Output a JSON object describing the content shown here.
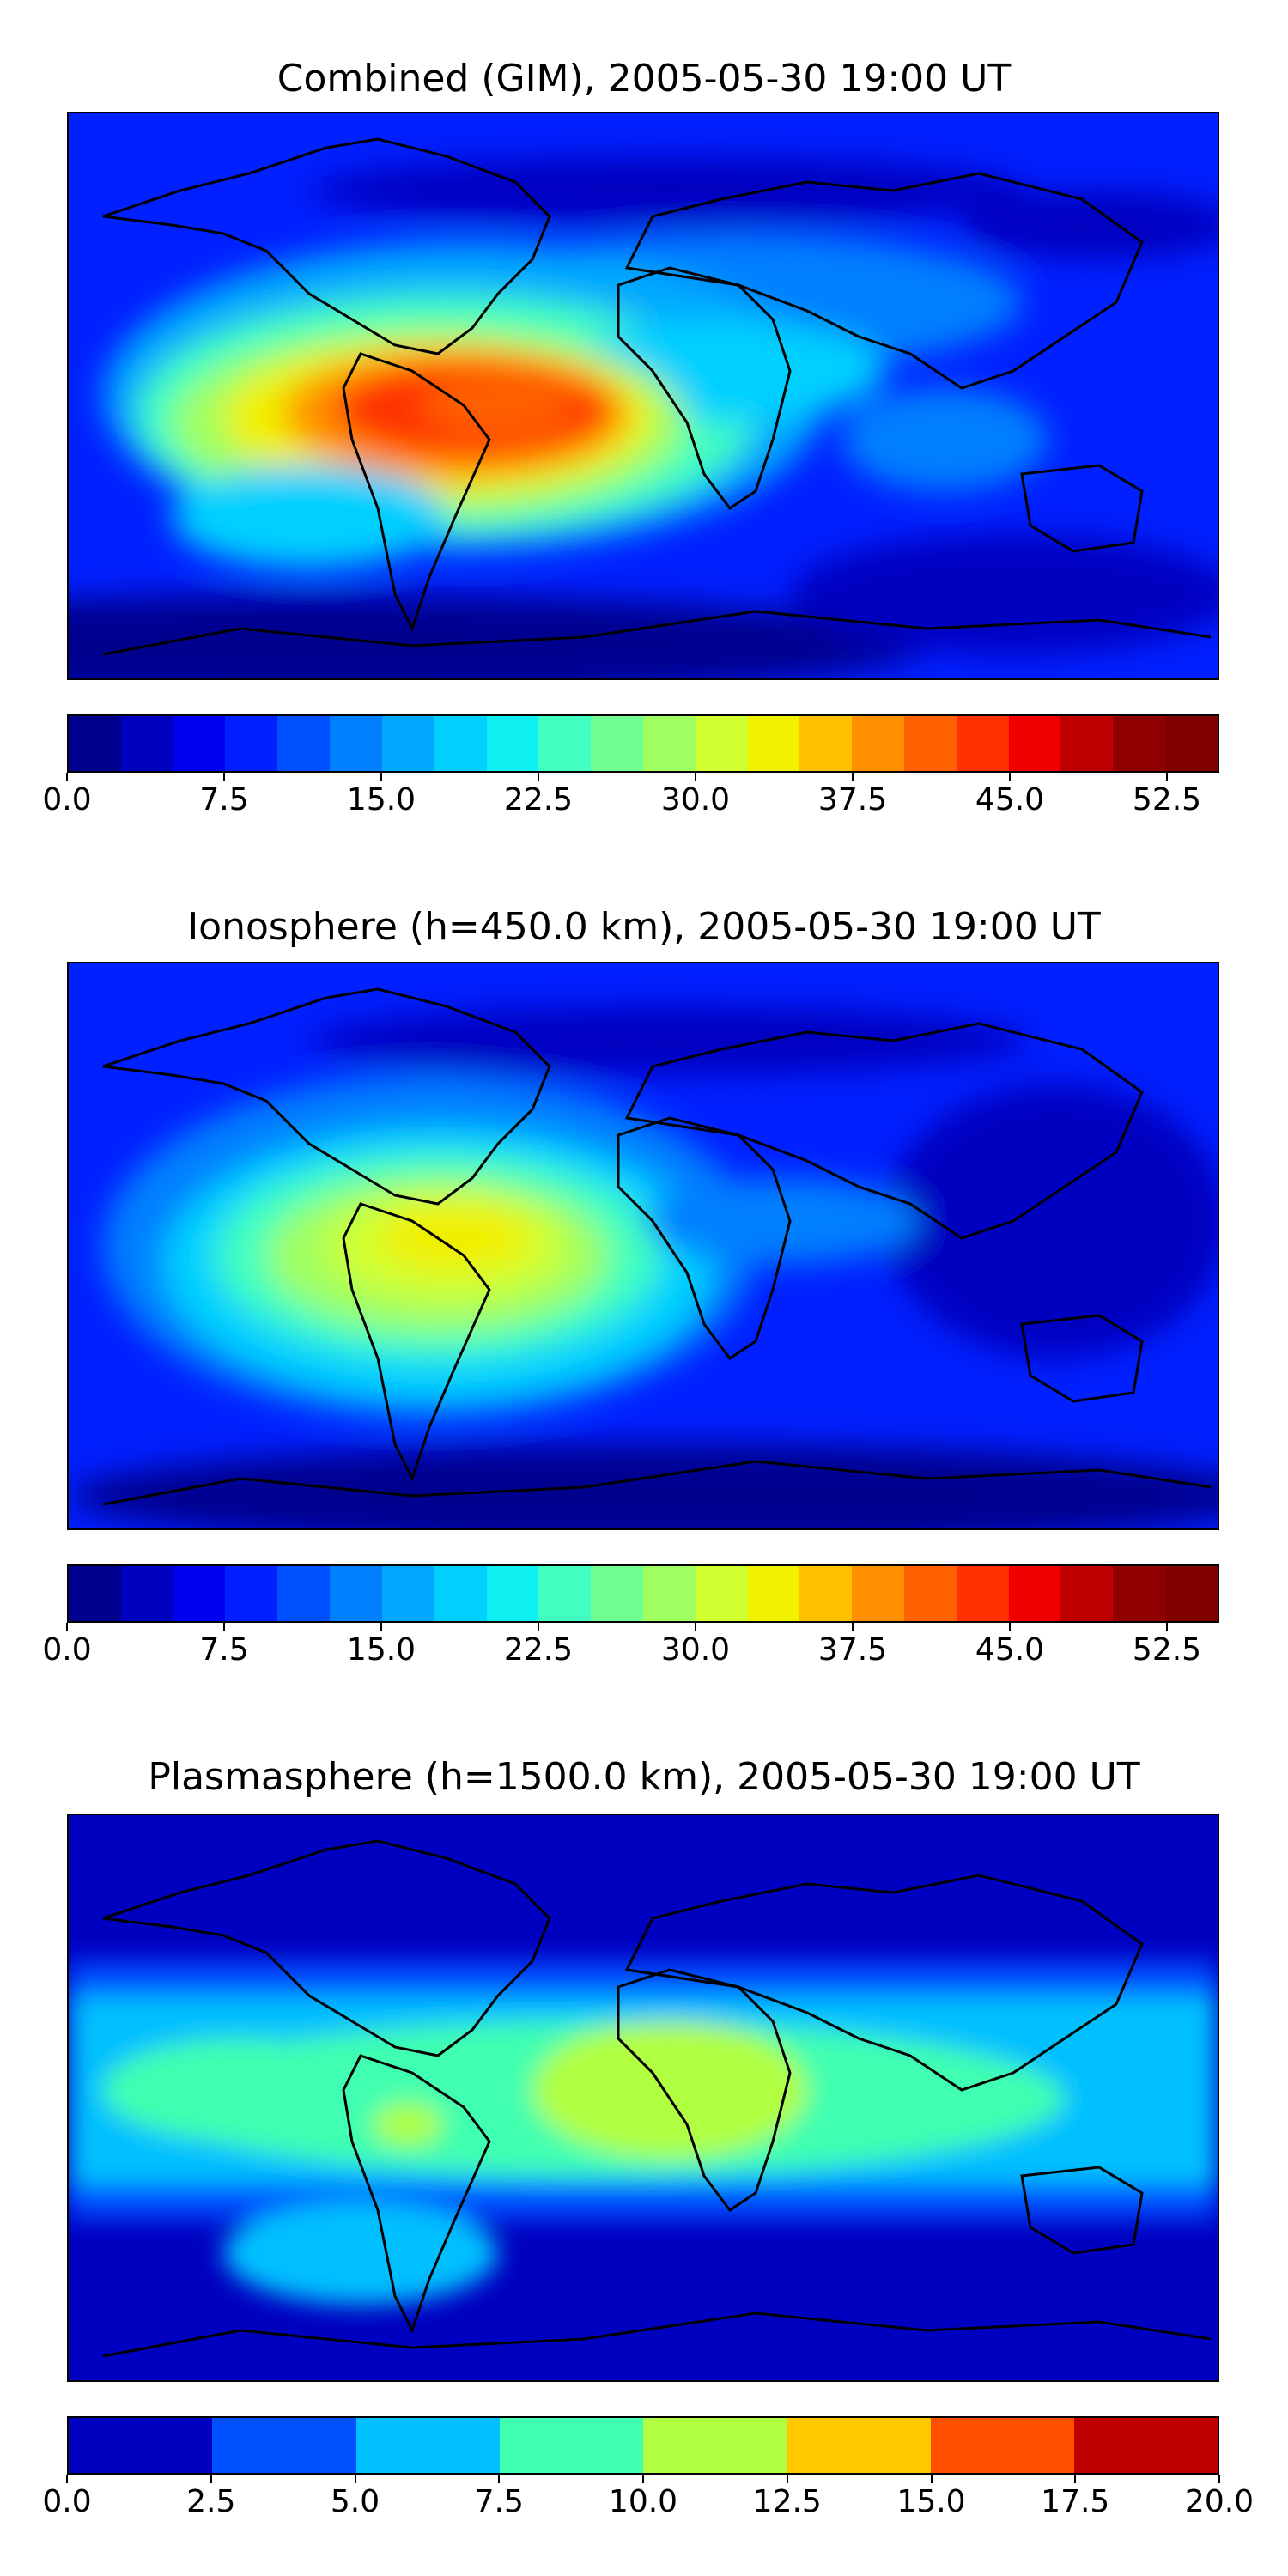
{
  "chart_data": [
    {
      "type": "heatmap",
      "title": "Combined (GIM), 2005-05-30 19:00 UT",
      "colorbar": {
        "min": 0.0,
        "max": 55.0,
        "levels": 22,
        "tick_values": [
          0.0,
          7.5,
          15.0,
          22.5,
          30.0,
          37.5,
          45.0,
          52.5
        ],
        "tick_labels": [
          "0.0",
          "7.5",
          "15.0",
          "22.5",
          "30.0",
          "37.5",
          "45.0",
          "52.5"
        ],
        "colors": [
          "#00008f",
          "#0000c0",
          "#0000f0",
          "#0020ff",
          "#0050ff",
          "#0080ff",
          "#00a8ff",
          "#00d0ff",
          "#10f0f0",
          "#40ffc0",
          "#70ff90",
          "#a0ff60",
          "#d0ff30",
          "#f0f000",
          "#ffc000",
          "#ff9000",
          "#ff6000",
          "#ff3000",
          "#f00000",
          "#c00000",
          "#900000",
          "#800000"
        ]
      },
      "field": "Global ionospheric TEC map; peak values about 45-50 over South America and the equatorial Atlantic; low values (about 2-10) at high latitudes and over the Pacific and Indian Oceans"
    },
    {
      "type": "heatmap",
      "title": "Ionosphere  (h=450.0 km), 2005-05-30 19:00 UT",
      "colorbar": {
        "min": 0.0,
        "max": 55.0,
        "levels": 22,
        "tick_values": [
          0.0,
          7.5,
          15.0,
          22.5,
          30.0,
          37.5,
          45.0,
          52.5
        ],
        "tick_labels": [
          "0.0",
          "7.5",
          "15.0",
          "22.5",
          "30.0",
          "37.5",
          "45.0",
          "52.5"
        ],
        "colors": [
          "#00008f",
          "#0000c0",
          "#0000f0",
          "#0020ff",
          "#0050ff",
          "#0080ff",
          "#00a8ff",
          "#00d0ff",
          "#10f0f0",
          "#40ffc0",
          "#70ff90",
          "#a0ff60",
          "#d0ff30",
          "#f0f000",
          "#ffc000",
          "#ff9000",
          "#ff6000",
          "#ff3000",
          "#f00000",
          "#c00000",
          "#900000",
          "#800000"
        ]
      },
      "field": "Ionospheric TEC; maximum about 35-40 over South America; low values elsewhere"
    },
    {
      "type": "heatmap",
      "title": "Plasmasphere (h=1500.0 km), 2005-05-30 19:00 UT",
      "colorbar": {
        "min": 0.0,
        "max": 20.0,
        "levels": 8,
        "tick_values": [
          0.0,
          2.5,
          5.0,
          7.5,
          10.0,
          12.5,
          15.0,
          17.5,
          20.0
        ],
        "tick_labels": [
          "0.0",
          "2.5",
          "5.0",
          "7.5",
          "10.0",
          "12.5",
          "15.0",
          "17.5",
          "20.0"
        ],
        "colors": [
          "#0000c0",
          "#0050ff",
          "#00c0ff",
          "#40ffb0",
          "#b0ff40",
          "#ffc800",
          "#ff5000",
          "#c00000"
        ]
      },
      "field": "Plasmaspheric TEC; band of 7.5-12.5 across low latitudes, highest (10-12.5) over Africa and western South America; 0-5 at high latitudes"
    }
  ]
}
